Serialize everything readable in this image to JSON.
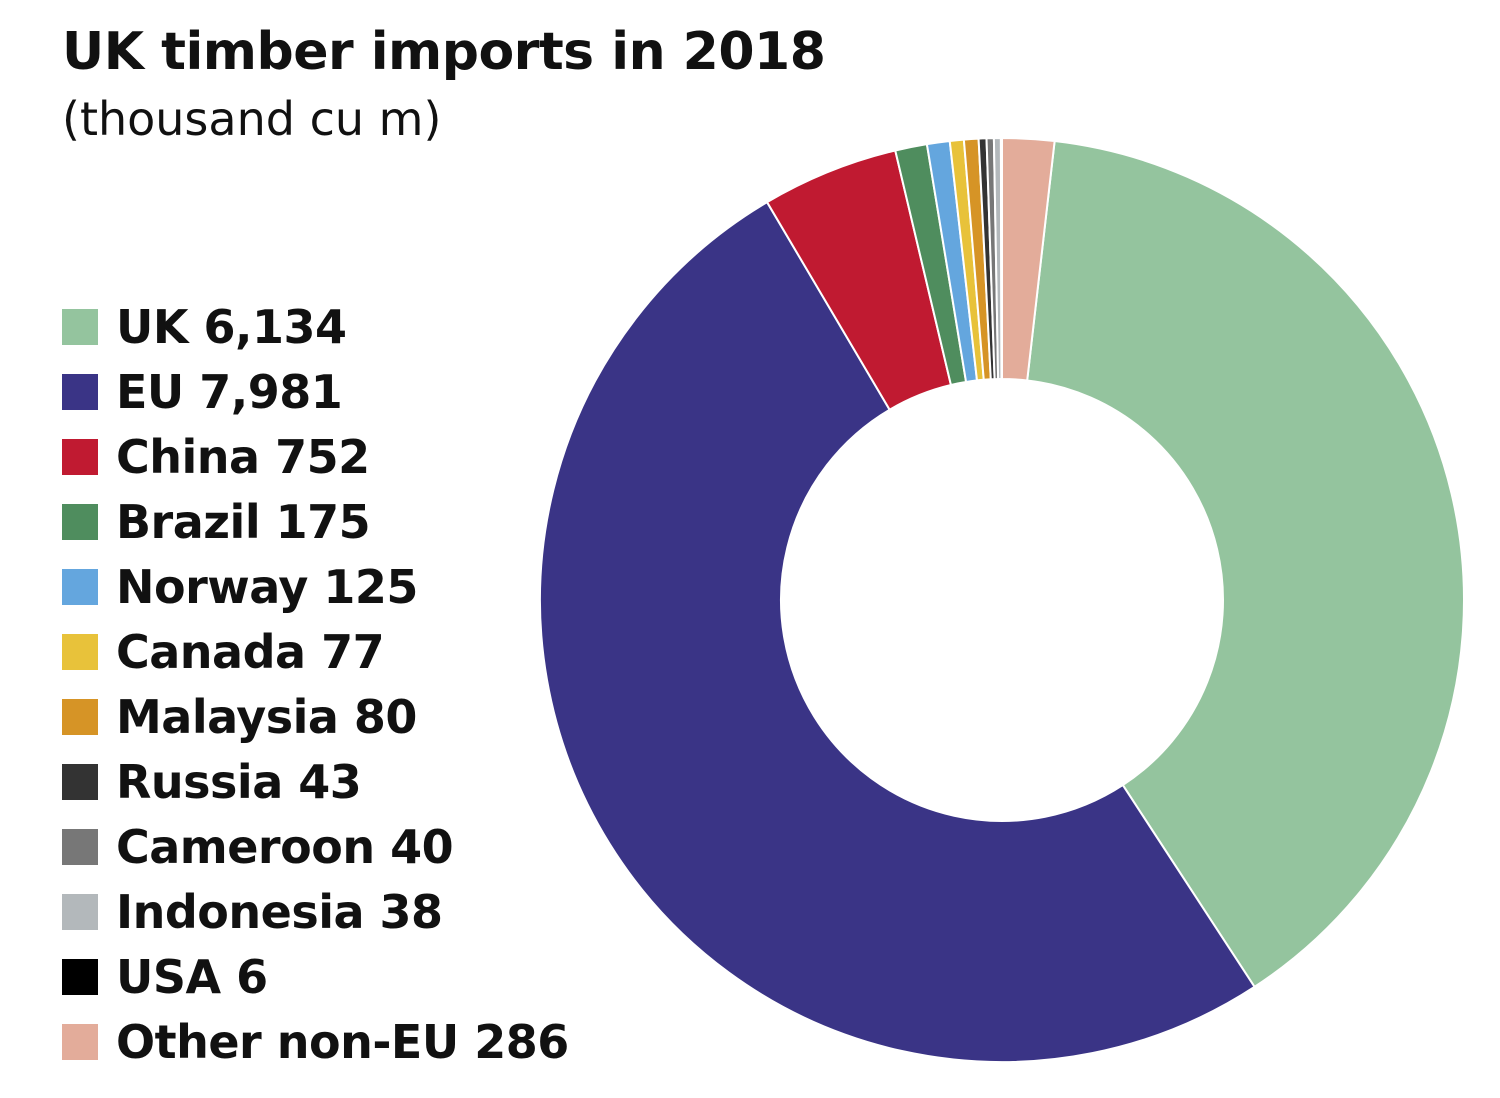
{
  "chart_data": {
    "type": "pie",
    "variant": "donut",
    "title": "UK timber imports in 2018",
    "subtitle": "(thousand cu m)",
    "legend_position": "left",
    "slices": [
      {
        "label": "UK",
        "value": 6134,
        "display": "6,134",
        "color": "#94c49e"
      },
      {
        "label": "EU",
        "value": 7981,
        "display": "7,981",
        "color": "#3a3486"
      },
      {
        "label": "China",
        "value": 752,
        "display": "752",
        "color": "#c01a31"
      },
      {
        "label": "Brazil",
        "value": 175,
        "display": "175",
        "color": "#4f8d5e"
      },
      {
        "label": "Norway",
        "value": 125,
        "display": "125",
        "color": "#64a6de"
      },
      {
        "label": "Canada",
        "value": 77,
        "display": "77",
        "color": "#e8c23a"
      },
      {
        "label": "Malaysia",
        "value": 80,
        "display": "80",
        "color": "#d69426"
      },
      {
        "label": "Russia",
        "value": 43,
        "display": "43",
        "color": "#333333"
      },
      {
        "label": "Cameroon",
        "value": 40,
        "display": "40",
        "color": "#777777"
      },
      {
        "label": "Indonesia",
        "value": 38,
        "display": "38",
        "color": "#b3b8bb"
      },
      {
        "label": "USA",
        "value": 6,
        "display": "6",
        "color": "#000000"
      },
      {
        "label": "Other non-EU",
        "value": 286,
        "display": "286",
        "color": "#e3ac9a"
      }
    ]
  }
}
